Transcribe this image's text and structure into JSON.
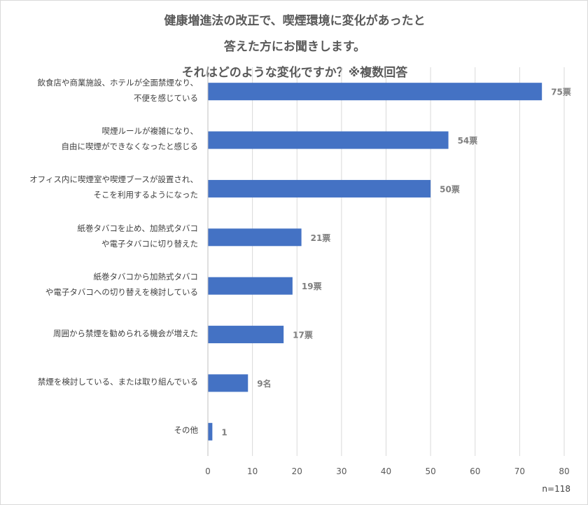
{
  "title_lines": [
    "健康増進法の改正で、喫煙環境に変化があったと",
    "答えた方にお聞きします。",
    "それはどのような変化ですか？※複数回答"
  ],
  "note": "n=118",
  "chart_data": {
    "type": "bar",
    "orientation": "horizontal",
    "title": "健康増進法の改正で、喫煙環境に変化があったと答えた方にお聞きします。それはどのような変化ですか？※複数回答",
    "categories": [
      [
        "飲食店や商業施設、ホテルが全面禁煙なり、",
        "不便を感じている"
      ],
      [
        "喫煙ルールが複雑になり、",
        "自由に喫煙ができなくなったと感じる"
      ],
      [
        "オフィス内に喫煙室や喫煙ブースが設置され、",
        "そこを利用するようになった"
      ],
      [
        "紙巻タバコを止め、加熱式タバコ",
        "や電子タバコに切り替えた"
      ],
      [
        "紙巻タバコから加熱式タバコ",
        "や電子タバコへの切り替えを検討している"
      ],
      [
        "周囲から禁煙を勧められる機会が増えた"
      ],
      [
        "禁煙を検討している、または取り組んでいる"
      ],
      [
        "その他"
      ]
    ],
    "values": [
      75,
      54,
      50,
      21,
      19,
      17,
      9,
      1
    ],
    "data_labels": [
      "75票",
      "54票",
      "50票",
      "21票",
      "19票",
      "17票",
      "9名",
      "1"
    ],
    "xlim": [
      0,
      80
    ],
    "xticks": [
      0,
      10,
      20,
      30,
      40,
      50,
      60,
      70,
      80
    ],
    "grid": true,
    "bar_color": "#4472c4",
    "grid_color": "#d9d9d9",
    "label_color": "#7f7f7f"
  }
}
